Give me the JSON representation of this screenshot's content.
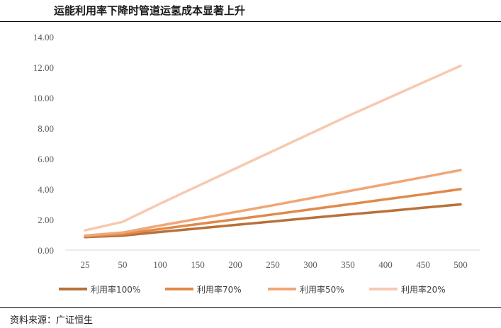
{
  "title": "运能利用率下降时管道运氢成本显著上升",
  "source": "资料来源：广证恒生",
  "chart_data": {
    "type": "line",
    "title": "运能利用率下降时管道运氢成本显著上升",
    "xlabel": "",
    "ylabel": "",
    "categories": [
      "25",
      "50",
      "100",
      "150",
      "200",
      "250",
      "300",
      "350",
      "400",
      "450",
      "500"
    ],
    "ylim": [
      0,
      14
    ],
    "yticks": [
      "0.00",
      "2.00",
      "4.00",
      "6.00",
      "8.00",
      "10.00",
      "12.00",
      "14.00"
    ],
    "grid": false,
    "legend": "bottom",
    "series": [
      {
        "name": "利用率100%",
        "color": "#b8713a",
        "values": [
          0.85,
          0.95,
          1.19,
          1.42,
          1.65,
          1.88,
          2.11,
          2.33,
          2.55,
          2.78,
          3.0
        ]
      },
      {
        "name": "利用率70%",
        "color": "#e0894a",
        "values": [
          0.9,
          1.05,
          1.38,
          1.7,
          2.02,
          2.34,
          2.67,
          3.0,
          3.33,
          3.66,
          4.0
        ]
      },
      {
        "name": "利用率50%",
        "color": "#f0a676",
        "values": [
          0.95,
          1.15,
          1.61,
          2.05,
          2.5,
          2.94,
          3.4,
          3.86,
          4.32,
          4.78,
          5.25
        ]
      },
      {
        "name": "利用率20%",
        "color": "#f7c9b0",
        "values": [
          1.3,
          1.85,
          3.05,
          4.2,
          5.35,
          6.5,
          7.65,
          8.8,
          9.9,
          11.0,
          12.1
        ]
      }
    ]
  }
}
